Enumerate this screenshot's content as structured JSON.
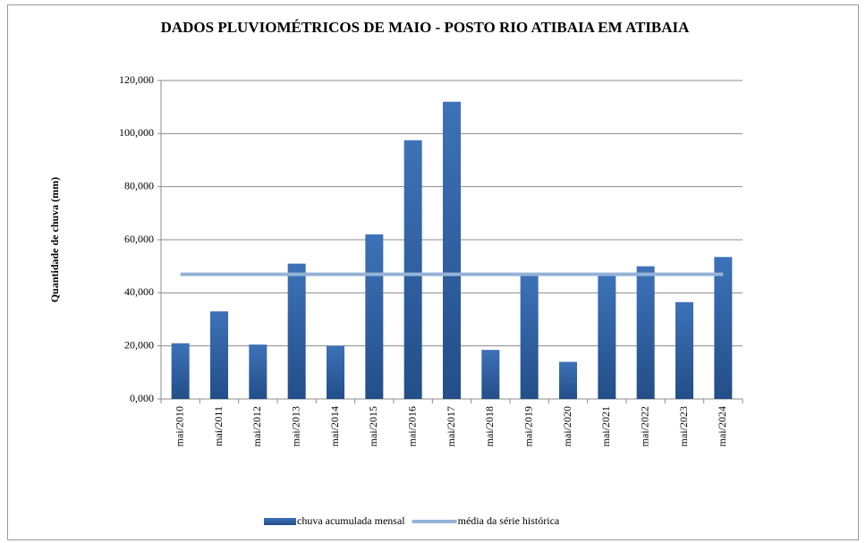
{
  "chart_data": {
    "type": "bar",
    "title": "DADOS PLUVIOMÉTRICOS DE MAIO - POSTO RIO ATIBAIA EM ATIBAIA",
    "y_label": "Quantidade de chuva (mm)",
    "categories": [
      "mai/2010",
      "mai/2011",
      "mai/2012",
      "mai/2013",
      "mai/2014",
      "mai/2015",
      "mai/2016",
      "mai/2017",
      "mai/2018",
      "mai/2019",
      "mai/2020",
      "mai/2021",
      "mai/2022",
      "mai/2023",
      "mai/2024"
    ],
    "series": [
      {
        "name": "chuva acumulada mensal",
        "type": "bar",
        "color": "#2f5f9e",
        "values": [
          21,
          33,
          20.5,
          51,
          20,
          62,
          97.5,
          112,
          18.5,
          47.5,
          14,
          46.5,
          50,
          36.5,
          53.5
        ]
      },
      {
        "name": "média da série histórica",
        "type": "line",
        "color": "#95b3d7",
        "values": [
          47,
          47,
          47,
          47,
          47,
          47,
          47,
          47,
          47,
          47,
          47,
          47,
          47,
          47,
          47
        ]
      }
    ],
    "ylim": [
      0,
      120
    ],
    "yticks": [
      {
        "value": 0,
        "label": "0,000"
      },
      {
        "value": 20,
        "label": "20,000"
      },
      {
        "value": 40,
        "label": "40,000"
      },
      {
        "value": 60,
        "label": "60,000"
      },
      {
        "value": 80,
        "label": "80,000"
      },
      {
        "value": 100,
        "label": "100,000"
      },
      {
        "value": 120,
        "label": "120,000"
      }
    ],
    "grid": true,
    "legend": "bottom"
  }
}
